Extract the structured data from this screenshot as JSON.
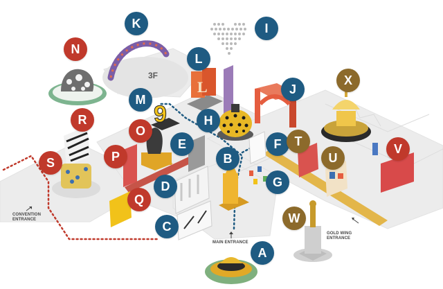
{
  "map": {
    "floor_label": "3F",
    "labels": {
      "convention_line1": "CONVENTION",
      "convention_line2": "ENTRANCE",
      "main_entrance": "MAIN ENTRANCE",
      "gold_line1": "GOLD WING",
      "gold_line2": "ENTRANCE"
    },
    "colors": {
      "blue": "#1f5b82",
      "red": "#c0392b",
      "brown": "#8c6a2b",
      "floor": "#ececec",
      "path_gold": "#e3b64a",
      "path_red": "#c0392b",
      "path_blue": "#1f5b82"
    },
    "markers": [
      {
        "id": "A",
        "color": "blue"
      },
      {
        "id": "B",
        "color": "blue"
      },
      {
        "id": "C",
        "color": "blue"
      },
      {
        "id": "D",
        "color": "blue"
      },
      {
        "id": "E",
        "color": "blue"
      },
      {
        "id": "F",
        "color": "blue"
      },
      {
        "id": "G",
        "color": "blue"
      },
      {
        "id": "H",
        "color": "blue"
      },
      {
        "id": "I",
        "color": "blue"
      },
      {
        "id": "J",
        "color": "blue"
      },
      {
        "id": "K",
        "color": "blue"
      },
      {
        "id": "L",
        "color": "blue"
      },
      {
        "id": "M",
        "color": "blue"
      },
      {
        "id": "N",
        "color": "red"
      },
      {
        "id": "O",
        "color": "red"
      },
      {
        "id": "P",
        "color": "red"
      },
      {
        "id": "Q",
        "color": "red"
      },
      {
        "id": "R",
        "color": "red"
      },
      {
        "id": "S",
        "color": "red"
      },
      {
        "id": "T",
        "color": "brown"
      },
      {
        "id": "U",
        "color": "brown"
      },
      {
        "id": "V",
        "color": "red"
      },
      {
        "id": "W",
        "color": "brown"
      },
      {
        "id": "X",
        "color": "brown"
      }
    ]
  }
}
